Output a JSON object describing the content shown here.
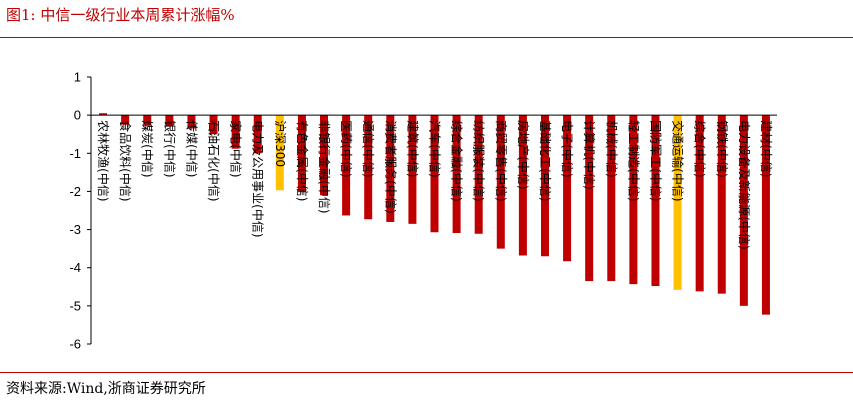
{
  "header": {
    "title": "图1:   中信一级行业本周累计涨幅%"
  },
  "footer": {
    "source": "资料来源:Wind,浙商证券研究所"
  },
  "colors": {
    "bar": "#c00000",
    "benchmark": "#ffc000",
    "accent": "#c00000"
  },
  "chart_data": {
    "type": "bar",
    "title": "",
    "xlabel": "",
    "ylabel": "",
    "ylim": [
      -6,
      1
    ],
    "yticks": [
      1,
      0,
      -1,
      -2,
      -3,
      -4,
      -5,
      -6
    ],
    "grid": false,
    "legend": "none",
    "categories": [
      "农林牧渔(中信)",
      "食品饮料(中信)",
      "煤炭(中信)",
      "银行(中信)",
      "传媒(中信)",
      "石油石化(中信)",
      "家电(中信)",
      "电力及公用事业(中信)",
      "沪深300",
      "有色金属(中信)",
      "非银行金融(中信)",
      "医药(中信)",
      "通信(中信)",
      "消费者服务(中信)",
      "建筑(中信)",
      "汽车(中信)",
      "综合金融(中信)",
      "纺织服装(中信)",
      "商贸零售(中信)",
      "房地产(中信)",
      "基础化工(中信)",
      "电子(中信)",
      "计算机(中信)",
      "机械(中信)",
      "轻工制造(中信)",
      "国防军工(中信)",
      "交通运输(中信)",
      "综合(中信)",
      "钢铁(中信)",
      "电力设备及新能源(中信)",
      "建材(中信)"
    ],
    "values": [
      0.05,
      -0.25,
      -0.28,
      -0.3,
      -0.35,
      -0.5,
      -0.88,
      -1.0,
      -1.97,
      -2.02,
      -2.1,
      -2.63,
      -2.73,
      -2.8,
      -2.85,
      -3.07,
      -3.09,
      -3.11,
      -3.5,
      -3.68,
      -3.7,
      -3.83,
      -4.35,
      -4.35,
      -4.43,
      -4.48,
      -4.58,
      -4.62,
      -4.68,
      -5.0,
      -5.23
    ],
    "highlight": [
      "沪深300",
      "交通运输(中信)"
    ]
  }
}
